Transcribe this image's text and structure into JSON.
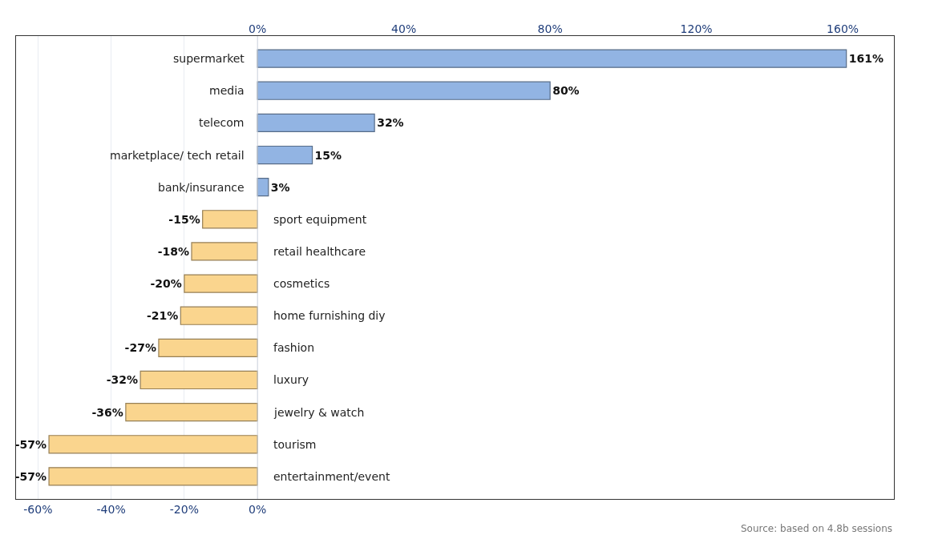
{
  "chart_data": {
    "type": "bar",
    "orientation": "horizontal",
    "categories": [
      "supermarket",
      "media",
      "telecom",
      "marketplace/ tech retail",
      "bank/insurance",
      "sport equipment",
      "retail healthcare",
      "cosmetics",
      "home furnishing diy",
      "fashion",
      "luxury",
      "jewelry & watch",
      "tourism",
      "entertainment/event"
    ],
    "values": [
      161,
      80,
      32,
      15,
      3,
      -15,
      -18,
      -20,
      -21,
      -27,
      -32,
      -36,
      -57,
      -57
    ],
    "value_labels": [
      "161%",
      "80%",
      "32%",
      "15%",
      "3%",
      "-15%",
      "-18%",
      "-20%",
      "-21%",
      "-27%",
      "-32%",
      "-36%",
      "-57%",
      "-57%"
    ],
    "colors": [
      "#92b4e3",
      "#92b4e3",
      "#92b4e3",
      "#92b4e3",
      "#92b4e3",
      "#fad58e",
      "#fad58e",
      "#fad58e",
      "#fad58e",
      "#fad58e",
      "#fad58e",
      "#fad58e",
      "#fad58e",
      "#fad58e"
    ],
    "xlim": [
      -66,
      174
    ],
    "xticks": [
      {
        "value": -60,
        "label": "-60%"
      },
      {
        "value": -40,
        "label": "-40%"
      },
      {
        "value": -20,
        "label": "-20%"
      },
      {
        "value": 0,
        "label": "0%"
      }
    ],
    "x2lim": [
      -66,
      174
    ],
    "x2ticks": [
      {
        "value": 0,
        "label": "0%"
      },
      {
        "value": 40,
        "label": "40%"
      },
      {
        "value": 80,
        "label": "80%"
      },
      {
        "value": 120,
        "label": "120%"
      },
      {
        "value": 160,
        "label": "160%"
      }
    ],
    "grid": "x",
    "annotations": [
      "Source: based on 4.8b sessions"
    ]
  }
}
